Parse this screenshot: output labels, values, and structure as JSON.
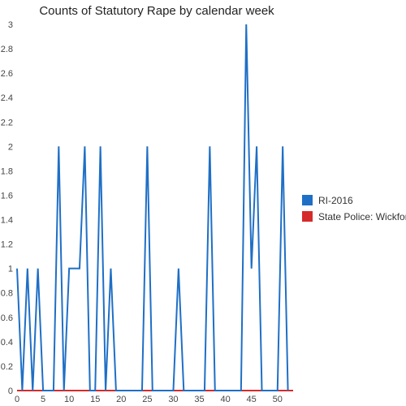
{
  "chart_data": {
    "type": "line",
    "title": "Counts of Statutory Rape by calendar week",
    "xlabel": "",
    "ylabel": "",
    "xlim": [
      0,
      53
    ],
    "ylim": [
      0,
      3
    ],
    "x_ticks": [
      0,
      5,
      10,
      15,
      20,
      25,
      30,
      35,
      40,
      45,
      50
    ],
    "y_ticks": [
      0,
      0.2,
      0.4,
      0.6,
      0.8,
      1,
      1.2,
      1.4,
      1.6,
      1.8,
      2,
      2.2,
      2.4,
      2.6,
      2.8,
      3
    ],
    "grid": false,
    "legend_position": "right",
    "series": [
      {
        "name": "RI-2016",
        "color": "#1f6fc6",
        "x": [
          0,
          1,
          2,
          3,
          4,
          5,
          6,
          7,
          8,
          9,
          10,
          11,
          12,
          13,
          14,
          15,
          16,
          17,
          18,
          19,
          20,
          21,
          22,
          23,
          24,
          25,
          26,
          27,
          28,
          29,
          30,
          31,
          32,
          33,
          34,
          35,
          36,
          37,
          38,
          39,
          40,
          41,
          42,
          43,
          44,
          45,
          46,
          47,
          48,
          49,
          50,
          51,
          52
        ],
        "values": [
          1,
          0,
          1,
          0,
          1,
          0,
          0,
          0,
          2,
          0,
          1,
          1,
          1,
          2,
          0,
          0,
          2,
          0,
          1,
          0,
          0,
          0,
          0,
          0,
          0,
          2,
          0,
          0,
          0,
          0,
          0,
          1,
          0,
          0,
          0,
          0,
          0,
          2,
          0,
          0,
          0,
          0,
          0,
          0,
          3,
          1,
          2,
          0,
          0,
          0,
          0,
          2,
          0
        ]
      },
      {
        "name": "State Police: Wickford",
        "color": "#d62b2b",
        "x": [
          0,
          53
        ],
        "values": [
          0,
          0
        ]
      }
    ]
  }
}
